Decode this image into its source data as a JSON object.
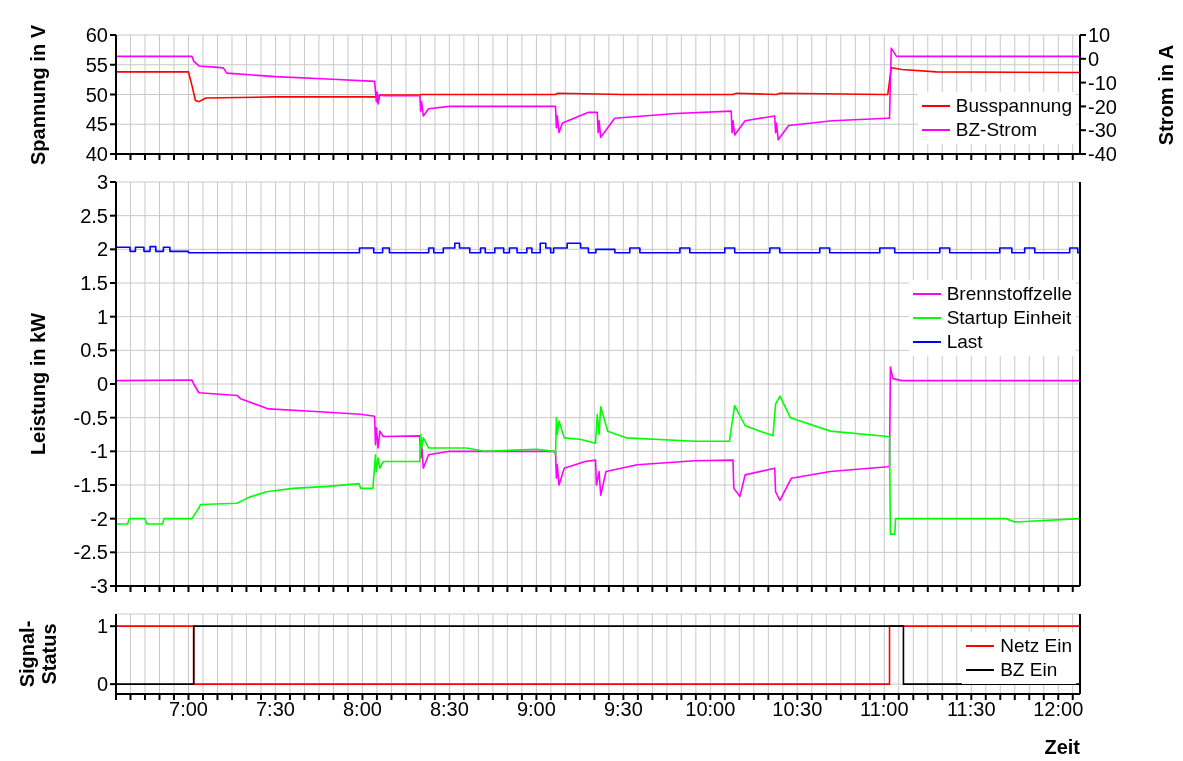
{
  "chart_data": [
    {
      "type": "line",
      "ylabel": "Spannung in V",
      "y2label": "Strom in A",
      "xlim": [
        6.5833,
        12.125
      ],
      "ylim": [
        40,
        60
      ],
      "yticks": [
        40,
        45,
        50,
        55,
        60
      ],
      "y2lim": [
        -40,
        10
      ],
      "y2ticks": [
        -40,
        -30,
        -20,
        -10,
        0,
        10
      ],
      "grid": true,
      "legend": "bottom right",
      "tick_labels": "y",
      "xticks": [
        6.5833,
        6.6667,
        6.75,
        6.8333,
        6.9167,
        7,
        7.0833,
        7.1667,
        7.25,
        7.3333,
        7.4167,
        7.5,
        7.5833,
        7.6667,
        7.75,
        7.8333,
        7.9167,
        8,
        8.0833,
        8.1667,
        8.25,
        8.3333,
        8.4167,
        8.5,
        8.5833,
        8.6667,
        8.75,
        8.8333,
        8.9167,
        9,
        9.0833,
        9.1667,
        9.25,
        9.3333,
        9.4167,
        9.5,
        9.5833,
        9.6667,
        9.75,
        9.8333,
        9.9167,
        10,
        10.0833,
        10.1667,
        10.25,
        10.3333,
        10.4167,
        10.5,
        10.5833,
        10.6667,
        10.75,
        10.8333,
        10.9167,
        11,
        11.0833,
        11.1667,
        11.25,
        11.3333,
        11.4167,
        11.5,
        11.5833,
        11.6667,
        11.75,
        11.8333,
        11.9167,
        12,
        12.0833
      ],
      "series": [
        {
          "name": "Busspannung",
          "color": "#ff0000",
          "x": [
            6.5833,
            7.0,
            7.02,
            7.04,
            7.06,
            7.1,
            7.5,
            8.07,
            8.08,
            8.1,
            8.33,
            8.34,
            9.0,
            9.11,
            9.12,
            9.5,
            10.13,
            10.15,
            10.38,
            10.4,
            11.0,
            11.02,
            11.04,
            11.1,
            11.3,
            12.125
          ],
          "values": [
            53.8,
            53.8,
            51.5,
            49.0,
            48.8,
            49.4,
            49.6,
            49.6,
            49.5,
            49.9,
            49.9,
            50.0,
            50.0,
            50.0,
            50.2,
            50.0,
            50.0,
            50.2,
            50.0,
            50.2,
            50.0,
            50.0,
            54.5,
            54.2,
            53.8,
            53.7
          ]
        },
        {
          "name": "BZ-Strom",
          "color": "#ff00ff",
          "axis": "y2",
          "x": [
            6.5833,
            7.02,
            7.03,
            7.06,
            7.15,
            7.2,
            7.22,
            7.5,
            7.8,
            8.07,
            8.08,
            8.085,
            8.09,
            8.1,
            8.12,
            8.33,
            8.335,
            8.34,
            8.35,
            8.38,
            8.5,
            9.11,
            9.115,
            9.12,
            9.13,
            9.15,
            9.3,
            9.35,
            9.355,
            9.36,
            9.37,
            9.45,
            9.8,
            10.12,
            10.125,
            10.13,
            10.14,
            10.2,
            10.37,
            10.375,
            10.38,
            10.39,
            10.45,
            10.7,
            11.02,
            11.03,
            11.04,
            11.07,
            12.125
          ],
          "values": [
            1,
            1,
            -1,
            -3,
            -3.5,
            -3.8,
            -6,
            -7.5,
            -8.5,
            -9.5,
            -18,
            -14,
            -19,
            -15,
            -15.5,
            -15.5,
            -22,
            -18,
            -24,
            -21,
            -20,
            -20,
            -29,
            -24,
            -31,
            -27,
            -22.5,
            -22.5,
            -31,
            -26,
            -33,
            -25,
            -23,
            -22,
            -31,
            -26,
            -32,
            -26,
            -24,
            -31,
            -27,
            -34,
            -28,
            -26,
            -25,
            -25,
            4.5,
            1,
            1
          ]
        }
      ]
    },
    {
      "type": "line",
      "ylabel": "Leistung in kW",
      "xlim": [
        6.5833,
        12.125
      ],
      "ylim": [
        -3,
        3
      ],
      "yticks": [
        -3,
        -2.5,
        -2,
        -1.5,
        -1,
        -0.5,
        0,
        0.5,
        1,
        1.5,
        2,
        2.5,
        3
      ],
      "grid": true,
      "legend": "right",
      "tick_labels": "y",
      "xticks": [
        6.5833,
        6.6667,
        6.75,
        6.8333,
        6.9167,
        7,
        7.0833,
        7.1667,
        7.25,
        7.3333,
        7.4167,
        7.5,
        7.5833,
        7.6667,
        7.75,
        7.8333,
        7.9167,
        8,
        8.0833,
        8.1667,
        8.25,
        8.3333,
        8.4167,
        8.5,
        8.5833,
        8.6667,
        8.75,
        8.8333,
        8.9167,
        9,
        9.0833,
        9.1667,
        9.25,
        9.3333,
        9.4167,
        9.5,
        9.5833,
        9.6667,
        9.75,
        9.8333,
        9.9167,
        10,
        10.0833,
        10.1667,
        10.25,
        10.3333,
        10.4167,
        10.5,
        10.5833,
        10.6667,
        10.75,
        10.8333,
        10.9167,
        11,
        11.0833,
        11.1667,
        11.25,
        11.3333,
        11.4167,
        11.5,
        11.5833,
        11.6667,
        11.75,
        11.8333,
        11.9167,
        12,
        12.0833
      ],
      "series": [
        {
          "name": "Brennstoffzelle",
          "color": "#ff00ff",
          "x": [
            6.5833,
            7.02,
            7.03,
            7.06,
            7.28,
            7.3,
            7.46,
            7.68,
            7.99,
            8.07,
            8.075,
            8.08,
            8.09,
            8.1,
            8.12,
            8.33,
            8.335,
            8.34,
            8.35,
            8.38,
            8.5,
            9.11,
            9.115,
            9.12,
            9.13,
            9.16,
            9.28,
            9.34,
            9.345,
            9.36,
            9.37,
            9.4,
            9.58,
            9.91,
            10.13,
            10.135,
            10.17,
            10.2,
            10.37,
            10.375,
            10.4,
            10.465,
            10.69,
            11.02,
            11.03,
            11.035,
            11.05,
            11.1,
            12.125
          ],
          "values": [
            0.05,
            0.06,
            0.0,
            -0.13,
            -0.17,
            -0.22,
            -0.37,
            -0.4,
            -0.45,
            -0.48,
            -0.9,
            -0.65,
            -0.95,
            -0.7,
            -0.78,
            -0.77,
            -1.1,
            -0.9,
            -1.25,
            -1.05,
            -1.0,
            -1.0,
            -1.4,
            -1.2,
            -1.5,
            -1.25,
            -1.15,
            -1.13,
            -1.5,
            -1.3,
            -1.65,
            -1.3,
            -1.2,
            -1.14,
            -1.13,
            -1.55,
            -1.67,
            -1.35,
            -1.25,
            -1.6,
            -1.73,
            -1.4,
            -1.3,
            -1.23,
            -1.22,
            0.25,
            0.08,
            0.05,
            0.05
          ]
        },
        {
          "name": "Startup Einheit",
          "color": "#00ff00",
          "x": [
            6.5833,
            6.65,
            6.66,
            6.75,
            6.76,
            6.85,
            6.86,
            6.95,
            7.02,
            7.05,
            7.07,
            7.28,
            7.35,
            7.45,
            7.6,
            7.8,
            7.98,
            7.99,
            8.06,
            8.075,
            8.08,
            8.09,
            8.1,
            8.12,
            8.33,
            8.335,
            8.34,
            8.35,
            8.38,
            8.6,
            8.7,
            9.0,
            9.1,
            9.11,
            9.115,
            9.12,
            9.13,
            9.16,
            9.25,
            9.34,
            9.35,
            9.36,
            9.37,
            9.41,
            9.515,
            9.91,
            10.11,
            10.135,
            10.14,
            10.2,
            10.36,
            10.375,
            10.4,
            10.46,
            10.69,
            11.02,
            11.03,
            11.035,
            11.06,
            11.065,
            11.5,
            11.7,
            11.75,
            12.125
          ],
          "values": [
            -2.08,
            -2.08,
            -2.0,
            -2.0,
            -2.08,
            -2.08,
            -2.0,
            -2.0,
            -2.0,
            -1.88,
            -1.79,
            -1.77,
            -1.68,
            -1.6,
            -1.55,
            -1.52,
            -1.48,
            -1.55,
            -1.55,
            -1.05,
            -1.3,
            -1.1,
            -1.25,
            -1.15,
            -1.15,
            -0.75,
            -0.95,
            -0.8,
            -0.95,
            -0.95,
            -1.0,
            -0.97,
            -1.0,
            -1.05,
            -0.5,
            -0.75,
            -0.55,
            -0.8,
            -0.82,
            -0.88,
            -0.45,
            -0.75,
            -0.34,
            -0.7,
            -0.8,
            -0.85,
            -0.85,
            -0.4,
            -0.32,
            -0.62,
            -0.77,
            -0.3,
            -0.18,
            -0.5,
            -0.7,
            -0.78,
            -0.78,
            -2.23,
            -2.23,
            -2.0,
            -2.0,
            -2.0,
            -2.05,
            -2.0
          ]
        },
        {
          "name": "Last",
          "color": "#0000ff",
          "type": "step",
          "x": [
            6.5833,
            6.664,
            6.695,
            6.744,
            6.779,
            6.812,
            6.856,
            6.893,
            7.0,
            7.983,
            8.065,
            8.116,
            8.155,
            8.381,
            8.41,
            8.465,
            8.531,
            8.558,
            8.617,
            8.679,
            8.706,
            8.761,
            8.812,
            8.845,
            8.889,
            8.945,
            8.974,
            9.022,
            9.054,
            9.082,
            9.099,
            9.177,
            9.254,
            9.299,
            9.342,
            9.451,
            9.537,
            9.595,
            9.825,
            9.882,
            10.083,
            10.14,
            10.342,
            10.399,
            10.629,
            10.686,
            10.974,
            11.06,
            11.319,
            11.376,
            11.664,
            11.733,
            11.807,
            11.865,
            12.066,
            12.112,
            12.125
          ],
          "values": [
            2.03,
            1.97,
            2.03,
            1.97,
            2.04,
            1.97,
            2.03,
            1.97,
            1.95,
            2.02,
            1.95,
            2.02,
            1.95,
            2.02,
            1.95,
            2.02,
            2.09,
            2.02,
            1.95,
            2.02,
            1.95,
            2.02,
            1.95,
            2.02,
            1.95,
            2.02,
            1.95,
            2.09,
            2.02,
            1.95,
            2.02,
            2.09,
            2.02,
            1.95,
            2.0,
            1.95,
            2.02,
            1.95,
            2.02,
            1.95,
            2.02,
            1.95,
            2.02,
            1.95,
            2.02,
            1.95,
            2.02,
            1.95,
            2.02,
            1.95,
            2.02,
            1.95,
            2.02,
            1.95,
            2.02,
            1.95,
            1.95
          ]
        }
      ]
    },
    {
      "type": "step",
      "ylabel": "Signal-\nStatus",
      "xlabel": "Zeit",
      "xlim": [
        6.5833,
        12.125
      ],
      "ylim": [
        -0.17,
        1.21
      ],
      "yticks": [
        0,
        1
      ],
      "grid": true,
      "legend": "bottom right",
      "xticks": [
        {
          "value": 6.5833,
          "label": null
        },
        {
          "value": 6.6667,
          "label": null
        },
        {
          "value": 6.75,
          "label": null
        },
        {
          "value": 6.8333,
          "label": null
        },
        {
          "value": 6.9167,
          "label": null
        },
        {
          "value": 7,
          "label": "7:00"
        },
        {
          "value": 7.0833,
          "label": null
        },
        {
          "value": 7.1667,
          "label": null
        },
        {
          "value": 7.25,
          "label": null
        },
        {
          "value": 7.3333,
          "label": null
        },
        {
          "value": 7.4167,
          "label": null
        },
        {
          "value": 7.5,
          "label": "7:30"
        },
        {
          "value": 7.5833,
          "label": null
        },
        {
          "value": 7.6667,
          "label": null
        },
        {
          "value": 7.75,
          "label": null
        },
        {
          "value": 7.8333,
          "label": null
        },
        {
          "value": 7.9167,
          "label": null
        },
        {
          "value": 8,
          "label": "8:00"
        },
        {
          "value": 8.0833,
          "label": null
        },
        {
          "value": 8.1667,
          "label": null
        },
        {
          "value": 8.25,
          "label": null
        },
        {
          "value": 8.3333,
          "label": null
        },
        {
          "value": 8.4167,
          "label": null
        },
        {
          "value": 8.5,
          "label": "8:30"
        },
        {
          "value": 8.5833,
          "label": null
        },
        {
          "value": 8.6667,
          "label": null
        },
        {
          "value": 8.75,
          "label": null
        },
        {
          "value": 8.8333,
          "label": null
        },
        {
          "value": 8.9167,
          "label": null
        },
        {
          "value": 9,
          "label": "9:00"
        },
        {
          "value": 9.0833,
          "label": null
        },
        {
          "value": 9.1667,
          "label": null
        },
        {
          "value": 9.25,
          "label": null
        },
        {
          "value": 9.3333,
          "label": null
        },
        {
          "value": 9.4167,
          "label": null
        },
        {
          "value": 9.5,
          "label": "9:30"
        },
        {
          "value": 9.5833,
          "label": null
        },
        {
          "value": 9.6667,
          "label": null
        },
        {
          "value": 9.75,
          "label": null
        },
        {
          "value": 9.8333,
          "label": null
        },
        {
          "value": 9.9167,
          "label": null
        },
        {
          "value": 10,
          "label": "10:00"
        },
        {
          "value": 10.0833,
          "label": null
        },
        {
          "value": 10.1667,
          "label": null
        },
        {
          "value": 10.25,
          "label": null
        },
        {
          "value": 10.3333,
          "label": null
        },
        {
          "value": 10.4167,
          "label": null
        },
        {
          "value": 10.5,
          "label": "10:30"
        },
        {
          "value": 10.5833,
          "label": null
        },
        {
          "value": 10.6667,
          "label": null
        },
        {
          "value": 10.75,
          "label": null
        },
        {
          "value": 10.8333,
          "label": null
        },
        {
          "value": 10.9167,
          "label": null
        },
        {
          "value": 11,
          "label": "11:00"
        },
        {
          "value": 11.0833,
          "label": null
        },
        {
          "value": 11.1667,
          "label": null
        },
        {
          "value": 11.25,
          "label": null
        },
        {
          "value": 11.3333,
          "label": null
        },
        {
          "value": 11.4167,
          "label": null
        },
        {
          "value": 11.5,
          "label": "11:30"
        },
        {
          "value": 11.5833,
          "label": null
        },
        {
          "value": 11.6667,
          "label": null
        },
        {
          "value": 11.75,
          "label": null
        },
        {
          "value": 11.8333,
          "label": null
        },
        {
          "value": 11.9167,
          "label": null
        },
        {
          "value": 12,
          "label": "12:00"
        },
        {
          "value": 12.0833,
          "label": null
        }
      ],
      "series": [
        {
          "name": "Netz Ein",
          "color": "#ff0000",
          "x": [
            6.5833,
            7.03,
            11.03,
            12.125
          ],
          "values": [
            1,
            0,
            1,
            1
          ]
        },
        {
          "name": "BZ Ein",
          "color": "#000000",
          "x": [
            6.5833,
            7.03,
            11.11,
            12.125
          ],
          "values": [
            0,
            1,
            0,
            0
          ]
        }
      ]
    }
  ]
}
